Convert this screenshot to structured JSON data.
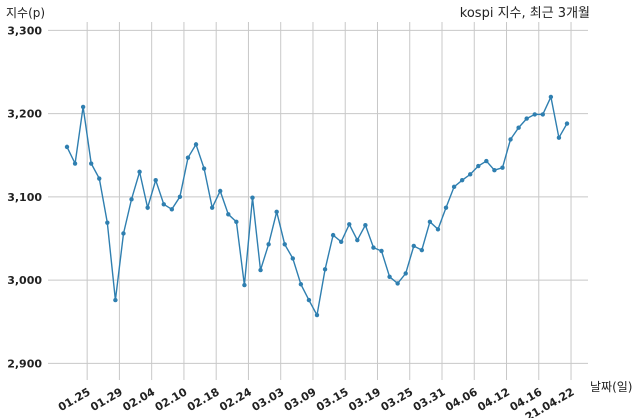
{
  "chart_data": {
    "type": "line",
    "title": "kospi 지수, 최근 3개월",
    "ylabel": "지수(p)",
    "xlabel": "날짜(일)",
    "ylim": [
      2880,
      3310
    ],
    "yticks": [
      2900,
      3000,
      3100,
      3200,
      3300
    ],
    "ytick_labels": [
      "2,900",
      "3,000",
      "3,100",
      "3,200",
      "3,300"
    ],
    "xtick_labels": [
      "01.25",
      "01.29",
      "02.04",
      "02.10",
      "02.18",
      "02.24",
      "03.03",
      "03.09",
      "03.15",
      "03.19",
      "03.25",
      "03.31",
      "04.06",
      "04.12",
      "04.16",
      "21.04.22"
    ],
    "xtick_positions": [
      2.5,
      6.5,
      10.5,
      14.5,
      18.5,
      22.5,
      26.5,
      30.5,
      34.5,
      38.5,
      42.5,
      46.5,
      50.5,
      54.5,
      58.5,
      62.5
    ],
    "grid": true,
    "series": [
      {
        "name": "",
        "color": "#2f7fb0",
        "values": [
          3160,
          3140,
          3208,
          3140,
          3122,
          3069,
          2976,
          3056,
          3097,
          3130,
          3087,
          3120,
          3091,
          3085,
          3100,
          3147,
          3163,
          3134,
          3087,
          3107,
          3079,
          3070,
          2994,
          3099,
          3012,
          3043,
          3082,
          3043,
          3026,
          2995,
          2976,
          2958,
          3013,
          3054,
          3046,
          3067,
          3048,
          3066,
          3039,
          3035,
          3004,
          2996,
          3008,
          3041,
          3036,
          3070,
          3061,
          3087,
          3112,
          3120,
          3127,
          3137,
          3143,
          3132,
          3135,
          3169,
          3183,
          3194,
          3199,
          3199,
          3220,
          3171,
          3188
        ]
      }
    ]
  }
}
